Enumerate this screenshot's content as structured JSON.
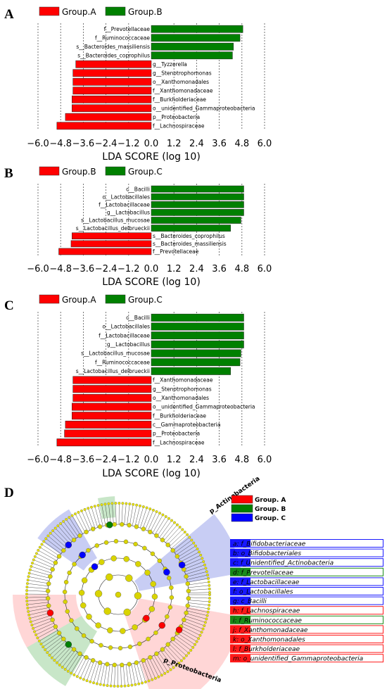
{
  "chart_data": [
    {
      "panel": "A",
      "type": "bar",
      "orientation": "horizontal",
      "legend": [
        {
          "name": "Group.A",
          "color": "#ff0000"
        },
        {
          "name": "Group.B",
          "color": "#008000"
        }
      ],
      "bars": [
        {
          "label": "f__Prevotellaceae",
          "value": 4.85,
          "group": "Group.B"
        },
        {
          "label": "f__Ruminococcaceae",
          "value": 4.7,
          "group": "Group.B"
        },
        {
          "label": "s__Bacteroides_massiliensis",
          "value": 4.35,
          "group": "Group.B"
        },
        {
          "label": "s__Bacteroides_coprophilus",
          "value": 4.3,
          "group": "Group.B"
        },
        {
          "label": "g__Tyzzerella",
          "value": -4.0,
          "group": "Group.A"
        },
        {
          "label": "g__Stenotrophomonas",
          "value": -4.15,
          "group": "Group.A"
        },
        {
          "label": "o__Xanthomonadales",
          "value": -4.15,
          "group": "Group.A"
        },
        {
          "label": "f__Xanthomonadaceae",
          "value": -4.15,
          "group": "Group.A"
        },
        {
          "label": "f__Burkholderiaceae",
          "value": -4.2,
          "group": "Group.A"
        },
        {
          "label": "o__unidentified_Gammaproteobacteria",
          "value": -4.2,
          "group": "Group.A"
        },
        {
          "label": "p__Proteobacteria",
          "value": -4.55,
          "group": "Group.A"
        },
        {
          "label": "f__Lachnospiraceae",
          "value": -5.0,
          "group": "Group.A"
        }
      ],
      "xlabel": "LDA SCORE (log 10)",
      "xticks": [
        -6.0,
        -4.8,
        -3.6,
        -2.4,
        -1.2,
        0.0,
        1.2,
        2.4,
        3.6,
        4.8,
        6.0
      ],
      "xlim": [
        -6.0,
        6.0
      ]
    },
    {
      "panel": "B",
      "type": "bar",
      "orientation": "horizontal",
      "legend": [
        {
          "name": "Group.B",
          "color": "#ff0000"
        },
        {
          "name": "Group.C",
          "color": "#008000"
        }
      ],
      "bars": [
        {
          "label": "c__Bacilli",
          "value": 4.9,
          "group": "Group.C"
        },
        {
          "label": "o__Lactobacillales",
          "value": 4.9,
          "group": "Group.C"
        },
        {
          "label": "f__Lactobacillaceae",
          "value": 4.9,
          "group": "Group.C"
        },
        {
          "label": "g__Lactobacillus",
          "value": 4.9,
          "group": "Group.C"
        },
        {
          "label": "s__Lactobacillus_mucosae",
          "value": 4.75,
          "group": "Group.C"
        },
        {
          "label": "s__Lactobacillus_delbrueckii",
          "value": 4.2,
          "group": "Group.C"
        },
        {
          "label": "s__Bacteroides_coprophilus",
          "value": -4.2,
          "group": "Group.B"
        },
        {
          "label": "s__Bacteroides_massiliensis",
          "value": -4.25,
          "group": "Group.B"
        },
        {
          "label": "f__Prevotellaceae",
          "value": -4.9,
          "group": "Group.B"
        }
      ],
      "xlabel": "LDA SCORE (log 10)",
      "xticks": [
        -6.0,
        -4.8,
        -3.6,
        -2.4,
        -1.2,
        0.0,
        1.2,
        2.4,
        3.6,
        4.8,
        6.0
      ],
      "xlim": [
        -6.0,
        6.0
      ]
    },
    {
      "panel": "C",
      "type": "bar",
      "orientation": "horizontal",
      "legend": [
        {
          "name": "Group.A",
          "color": "#ff0000"
        },
        {
          "name": "Group.C",
          "color": "#008000"
        }
      ],
      "bars": [
        {
          "label": "c__Bacilli",
          "value": 4.9,
          "group": "Group.C"
        },
        {
          "label": "o__Lactobacillales",
          "value": 4.9,
          "group": "Group.C"
        },
        {
          "label": "f__Lactobacillaceae",
          "value": 4.9,
          "group": "Group.C"
        },
        {
          "label": "g__Lactobacillus",
          "value": 4.9,
          "group": "Group.C"
        },
        {
          "label": "s__Lactobacillus_mucosae",
          "value": 4.75,
          "group": "Group.C"
        },
        {
          "label": "f__Ruminococcaceae",
          "value": 4.7,
          "group": "Group.C"
        },
        {
          "label": "s__Lactobacillus_delbrueckii",
          "value": 4.2,
          "group": "Group.C"
        },
        {
          "label": "f__Xanthomonadaceae",
          "value": -4.15,
          "group": "Group.A"
        },
        {
          "label": "g__Stenotrophomonas",
          "value": -4.15,
          "group": "Group.A"
        },
        {
          "label": "o__Xanthomonadales",
          "value": -4.15,
          "group": "Group.A"
        },
        {
          "label": "o__unidentified_Gammaproteobacteria",
          "value": -4.2,
          "group": "Group.A"
        },
        {
          "label": "f__Burkholderiaceae",
          "value": -4.2,
          "group": "Group.A"
        },
        {
          "label": "c__Gammaproteobacteria",
          "value": -4.55,
          "group": "Group.A"
        },
        {
          "label": "p__Proteobacteria",
          "value": -4.6,
          "group": "Group.A"
        },
        {
          "label": "f__Lachnospiraceae",
          "value": -5.0,
          "group": "Group.A"
        }
      ],
      "xlabel": "LDA SCORE (log 10)",
      "xticks": [
        -6.0,
        -4.8,
        -3.6,
        -2.4,
        -1.2,
        0.0,
        1.2,
        2.4,
        3.6,
        4.8,
        6.0
      ],
      "xlim": [
        -6.0,
        6.0
      ]
    }
  ],
  "cladogram": {
    "panel": "D",
    "type": "cladogram",
    "group_legend": [
      {
        "name": "Group. A",
        "color": "#ff0000"
      },
      {
        "name": "Group. B",
        "color": "#008000"
      },
      {
        "name": "Group. C",
        "color": "#0000ff"
      }
    ],
    "clade_labels": [
      {
        "text": "p_Actinobacteria",
        "color": "#0000ff"
      },
      {
        "text": "p_Proteobacteria",
        "color": "#ff0000"
      }
    ],
    "key": [
      {
        "letter": "a",
        "text": "a: f_Bifidobacteriaceae",
        "color": "#0000ff"
      },
      {
        "letter": "b",
        "text": "b: o_Bifidobacteriales",
        "color": "#0000ff"
      },
      {
        "letter": "c",
        "text": "c: f_Unidentified_Actinobacteria",
        "color": "#0000ff"
      },
      {
        "letter": "d",
        "text": "d: f_Prevotellaceae",
        "color": "#008000"
      },
      {
        "letter": "e",
        "text": "e: f_Lactobacillaceae",
        "color": "#0000ff"
      },
      {
        "letter": "f",
        "text": "f: o_Lactobacillales",
        "color": "#0000ff"
      },
      {
        "letter": "g",
        "text": "g: c_Bacilli",
        "color": "#0000ff"
      },
      {
        "letter": "h",
        "text": "h: f_Lachnospiraceae",
        "color": "#ff0000"
      },
      {
        "letter": "i",
        "text": "i: f_Ruminococcaceae",
        "color": "#008000"
      },
      {
        "letter": "j",
        "text": "j: f_Xanthomonadaceae",
        "color": "#ff0000"
      },
      {
        "letter": "k",
        "text": "k: o_Xanthomonadales",
        "color": "#ff0000"
      },
      {
        "letter": "l",
        "text": "l: f_Burkholderiaceae",
        "color": "#ff0000"
      },
      {
        "letter": "m",
        "text": "m: o_unidentified_Gammaproteobacteria",
        "color": "#ff0000"
      }
    ]
  },
  "panel_letters": [
    "A",
    "B",
    "C",
    "D"
  ]
}
